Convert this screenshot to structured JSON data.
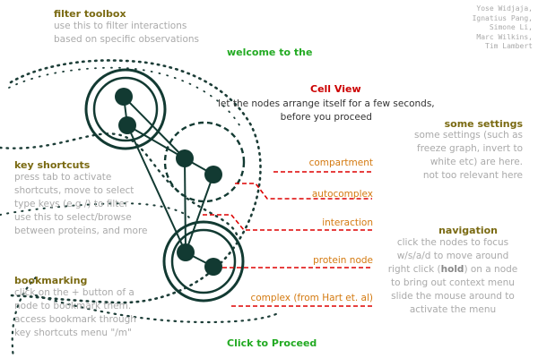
{
  "credits": "Yose Widjaja,\nIgnatius Pang,\nSimone Li,\nMarc Wilkins,\nTim Lambert",
  "filter_toolbox": {
    "title": "filter toolbox",
    "desc": "use this to filter interactions\nbased on specific observations"
  },
  "welcome": "welcome to the",
  "cell_view": "Cell View",
  "instruction": "let the nodes arrange itself for a few seconds,\nbefore you proceed",
  "key_shortcuts": {
    "title": "key shortcuts",
    "desc": "press tab to activate\nshortcuts, move to select\ntype keys (e.g /) to filter\nuse this to select/browse\nbetween proteins, and more"
  },
  "bookmarking": {
    "title": "bookmarking",
    "desc": "click on the + button of a\nnode to bookmark them.\naccess bookmark through\nkey shortcuts menu \"/m\""
  },
  "some_settings": {
    "title": "some settings",
    "desc": "some settings (such as\nfreeze graph, invert to\nwhite etc) are here.\nnot too relevant here"
  },
  "navigation": {
    "title": "navigation",
    "desc_line1": "click the nodes to focus",
    "desc_line2": "w/s/a/d to move around",
    "desc_line3_pre": "right click (",
    "desc_line3_bold": "hold",
    "desc_line3_post": ") on a node",
    "desc_line4": "to bring out context menu",
    "desc_line5": "slide the mouse around to",
    "desc_line6": "activate the menu"
  },
  "legend": {
    "compartment": "compartment",
    "autocomplex": "autocomplex",
    "interaction": "interaction",
    "protein_node": "protein node",
    "complex": "complex (from Hart et. al)"
  },
  "proceed": "Click to Proceed",
  "colors": {
    "node": "#123a32",
    "heading": "#7a6a12",
    "legend_text": "#d47a10",
    "legend_line": "#dd0000",
    "title_red": "#cc0000",
    "green": "#22aa22",
    "desc": "#aaaaaa"
  }
}
